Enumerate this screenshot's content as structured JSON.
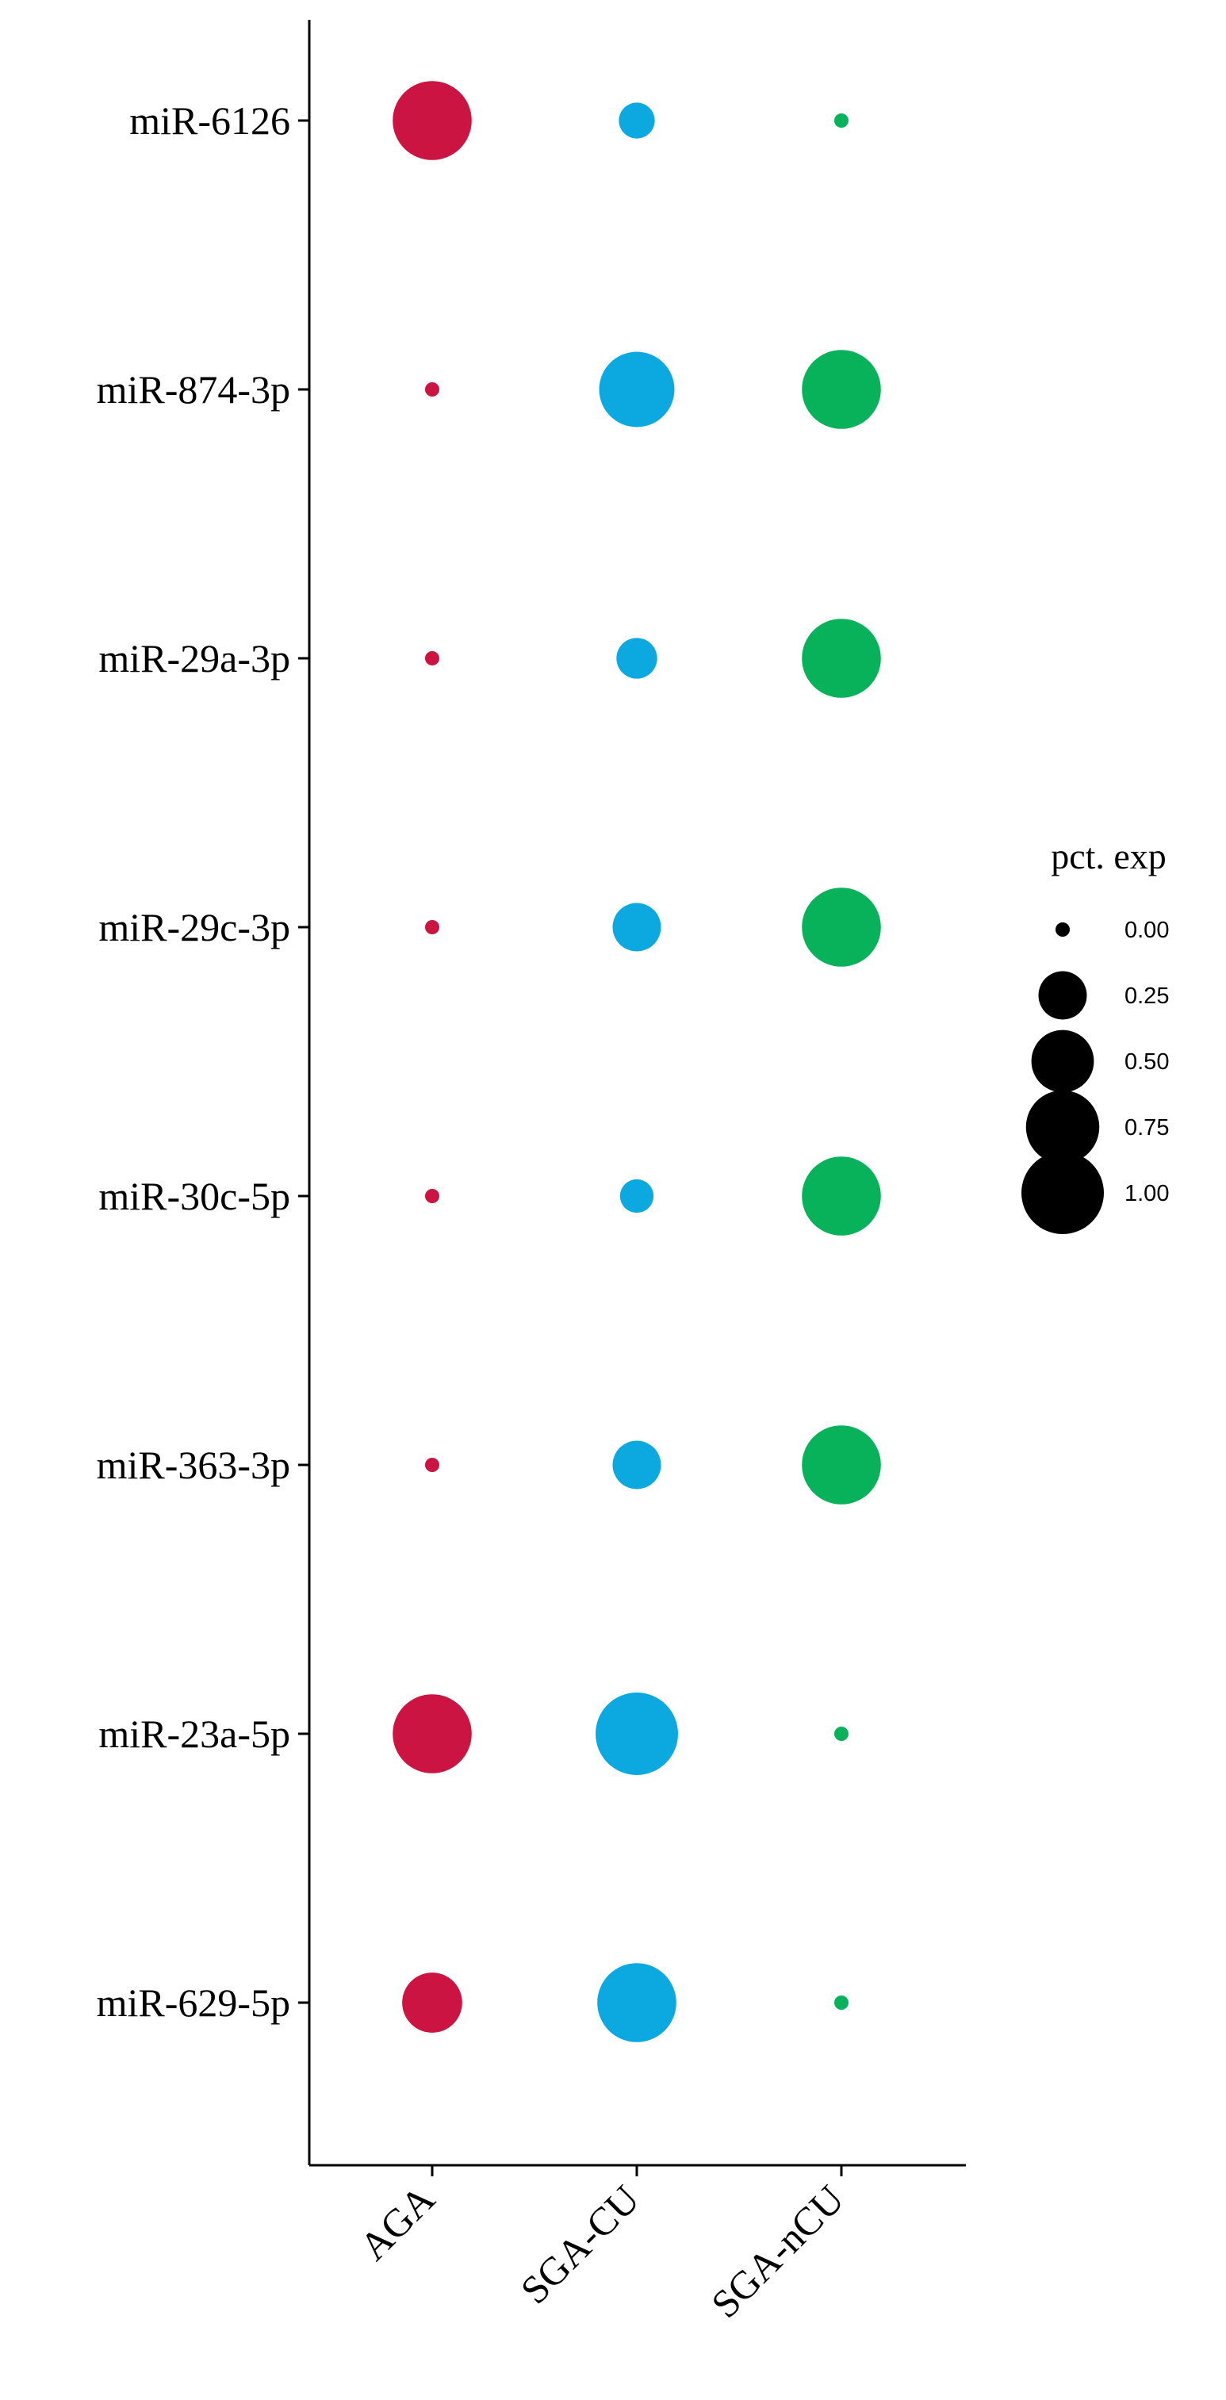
{
  "chart_data": {
    "type": "scatter",
    "subtype": "dot-plot",
    "title": "",
    "xlabel": "",
    "ylabel": "",
    "categories": [
      "AGA",
      "SGA-CU",
      "SGA-nCU"
    ],
    "x_tick_rotation_deg": 45,
    "rows": [
      "miR-6126",
      "miR-874-3p",
      "miR-29a-3p",
      "miR-29c-3p",
      "miR-30c-5p",
      "miR-363-3p",
      "miR-23a-5p",
      "miR-629-5p"
    ],
    "colors": {
      "AGA": "#cc1442",
      "SGA-CU": "#0ca9e1",
      "SGA-nCU": "#08b25a"
    },
    "pct_exp": {
      "AGA": [
        0.9,
        0.0,
        0.0,
        0.0,
        0.0,
        0.0,
        0.9,
        0.45
      ],
      "SGA-CU": [
        0.1,
        0.8,
        0.15,
        0.25,
        0.08,
        0.25,
        1.0,
        0.9
      ],
      "SGA-nCU": [
        0.0,
        0.9,
        0.9,
        0.9,
        0.9,
        0.9,
        0.0,
        0.0
      ]
    },
    "size_range": [
      0,
      1
    ],
    "grid": false,
    "legend": {
      "title": "pct. exp",
      "placement": "right",
      "values": [
        0.0,
        0.25,
        0.5,
        0.75,
        1.0
      ],
      "labels": [
        "0.00",
        "0.25",
        "0.50",
        "0.75",
        "1.00"
      ],
      "color": "#000000"
    }
  }
}
